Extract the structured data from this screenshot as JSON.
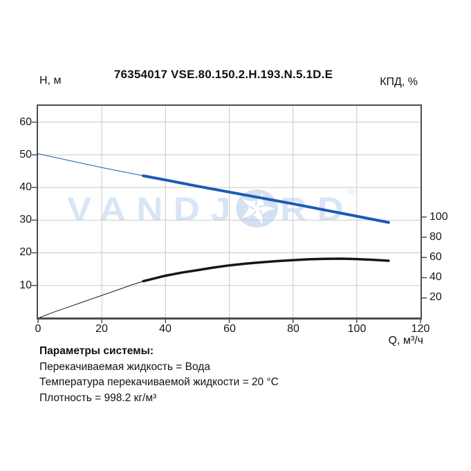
{
  "header": {
    "title": "76354017 VSE.80.150.2.H.193.N.5.1D.E",
    "left_axis_label": "Н, м",
    "right_axis_label": "КПД, %",
    "x_axis_unit_label": "Q, м³/ч"
  },
  "watermark": {
    "text_left": "VANDJ",
    "text_right": "RD",
    "registered": "®",
    "text_color": "#d8e5f4",
    "swirl_color": "#d3e1f2"
  },
  "chart_data": {
    "type": "line",
    "title": "76354017 VSE.80.150.2.H.193.N.5.1D.E",
    "grid": true,
    "legend": "none",
    "style": {
      "grid_color": "#c9c9c9",
      "axis_color": "#4d4d4d"
    },
    "x_axis": {
      "label": "Q, м³/ч",
      "min": 0,
      "max": 120,
      "ticks": [
        0,
        20,
        40,
        60,
        80,
        100,
        120
      ]
    },
    "y_left_axis": {
      "label": "Н, м",
      "min": 0,
      "max": 65,
      "ticks": [
        10,
        20,
        30,
        40,
        50,
        60
      ]
    },
    "y_right_axis": {
      "label": "КПД, %",
      "min": 0,
      "max": 210,
      "ticks": [
        20,
        40,
        60,
        80,
        100
      ]
    },
    "series": [
      {
        "name": "head",
        "axis": "left",
        "color": "#1b5ab5",
        "thin_width": 1,
        "thick_width": 4,
        "thin_points": [
          [
            0,
            50.3
          ],
          [
            10,
            48.2
          ],
          [
            20,
            46.1
          ],
          [
            33,
            43.6
          ]
        ],
        "thick_points": [
          [
            33,
            43.6
          ],
          [
            40,
            42.3
          ],
          [
            50,
            40.4
          ],
          [
            60,
            38.6
          ],
          [
            70,
            36.8
          ],
          [
            80,
            35.0
          ],
          [
            90,
            33.1
          ],
          [
            100,
            31.2
          ],
          [
            110,
            29.3
          ]
        ]
      },
      {
        "name": "efficiency",
        "axis": "right",
        "color": "#171717",
        "thin_width": 1,
        "thick_width": 3.5,
        "thin_points": [
          [
            0,
            0
          ],
          [
            5,
            6
          ],
          [
            10,
            11.5
          ],
          [
            15,
            17
          ],
          [
            20,
            22.5
          ],
          [
            25,
            28
          ],
          [
            30,
            33.5
          ],
          [
            33,
            36.5
          ]
        ],
        "thick_points": [
          [
            33,
            36.5
          ],
          [
            40,
            42
          ],
          [
            45,
            45
          ],
          [
            50,
            47.5
          ],
          [
            55,
            50
          ],
          [
            60,
            52.2
          ],
          [
            65,
            53.8
          ],
          [
            70,
            55.2
          ],
          [
            75,
            56.4
          ],
          [
            80,
            57.4
          ],
          [
            85,
            58.2
          ],
          [
            90,
            58.7
          ],
          [
            95,
            58.8
          ],
          [
            100,
            58.4
          ],
          [
            105,
            57.7
          ],
          [
            110,
            56.8
          ]
        ]
      }
    ]
  },
  "system_parameters": {
    "heading": "Параметры системы:",
    "lines": [
      "Перекачиваемая жидкость = Вода",
      "Температура перекачиваемой жидкости = 20 °C",
      "Плотность = 998.2 кг/м³"
    ]
  }
}
